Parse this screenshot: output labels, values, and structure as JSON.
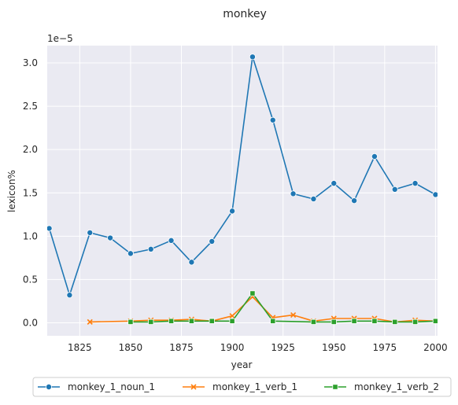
{
  "chart_data": {
    "type": "line",
    "title": "monkey",
    "xlabel": "year",
    "ylabel": "lexicon%",
    "y_scale_label": "1e−5",
    "xlim": [
      1809,
      2001
    ],
    "ylim": [
      -0.15,
      3.2
    ],
    "x_ticks": [
      1825,
      1850,
      1875,
      1900,
      1925,
      1950,
      1975,
      2000
    ],
    "y_ticks": [
      0.0,
      0.5,
      1.0,
      1.5,
      2.0,
      2.5,
      3.0
    ],
    "y_tick_labels": [
      "0.0",
      "0.5",
      "1.0",
      "1.5",
      "2.0",
      "2.5",
      "3.0"
    ],
    "grid": true,
    "background": "#eaeaf2",
    "legend_position": "bottom-center",
    "series": [
      {
        "name": "monkey_1_noun_1",
        "color": "#1f77b4",
        "marker": "circle",
        "x": [
          1810,
          1820,
          1830,
          1840,
          1850,
          1860,
          1870,
          1880,
          1890,
          1900,
          1910,
          1920,
          1930,
          1940,
          1950,
          1960,
          1970,
          1980,
          1990,
          2000
        ],
        "y": [
          1.09,
          0.32,
          1.04,
          0.98,
          0.8,
          0.85,
          0.95,
          0.7,
          0.94,
          1.29,
          3.07,
          2.34,
          1.49,
          1.43,
          1.61,
          1.41,
          1.92,
          1.54,
          1.61,
          1.48
        ]
      },
      {
        "name": "monkey_1_verb_1",
        "color": "#ff7f0e",
        "marker": "x",
        "x": [
          1830,
          1850,
          1860,
          1870,
          1880,
          1890,
          1900,
          1910,
          1920,
          1930,
          1940,
          1950,
          1960,
          1970,
          1980,
          1990,
          2000
        ],
        "y": [
          0.01,
          0.02,
          0.03,
          0.03,
          0.04,
          0.02,
          0.08,
          0.3,
          0.06,
          0.09,
          0.02,
          0.05,
          0.05,
          0.05,
          0.01,
          0.03,
          0.02
        ]
      },
      {
        "name": "monkey_1_verb_2",
        "color": "#2ca02c",
        "marker": "square",
        "x": [
          1850,
          1860,
          1870,
          1880,
          1890,
          1900,
          1910,
          1920,
          1940,
          1950,
          1960,
          1970,
          1980,
          1990,
          2000
        ],
        "y": [
          0.01,
          0.01,
          0.02,
          0.02,
          0.02,
          0.02,
          0.34,
          0.02,
          0.01,
          0.01,
          0.02,
          0.02,
          0.01,
          0.01,
          0.02
        ]
      }
    ]
  }
}
